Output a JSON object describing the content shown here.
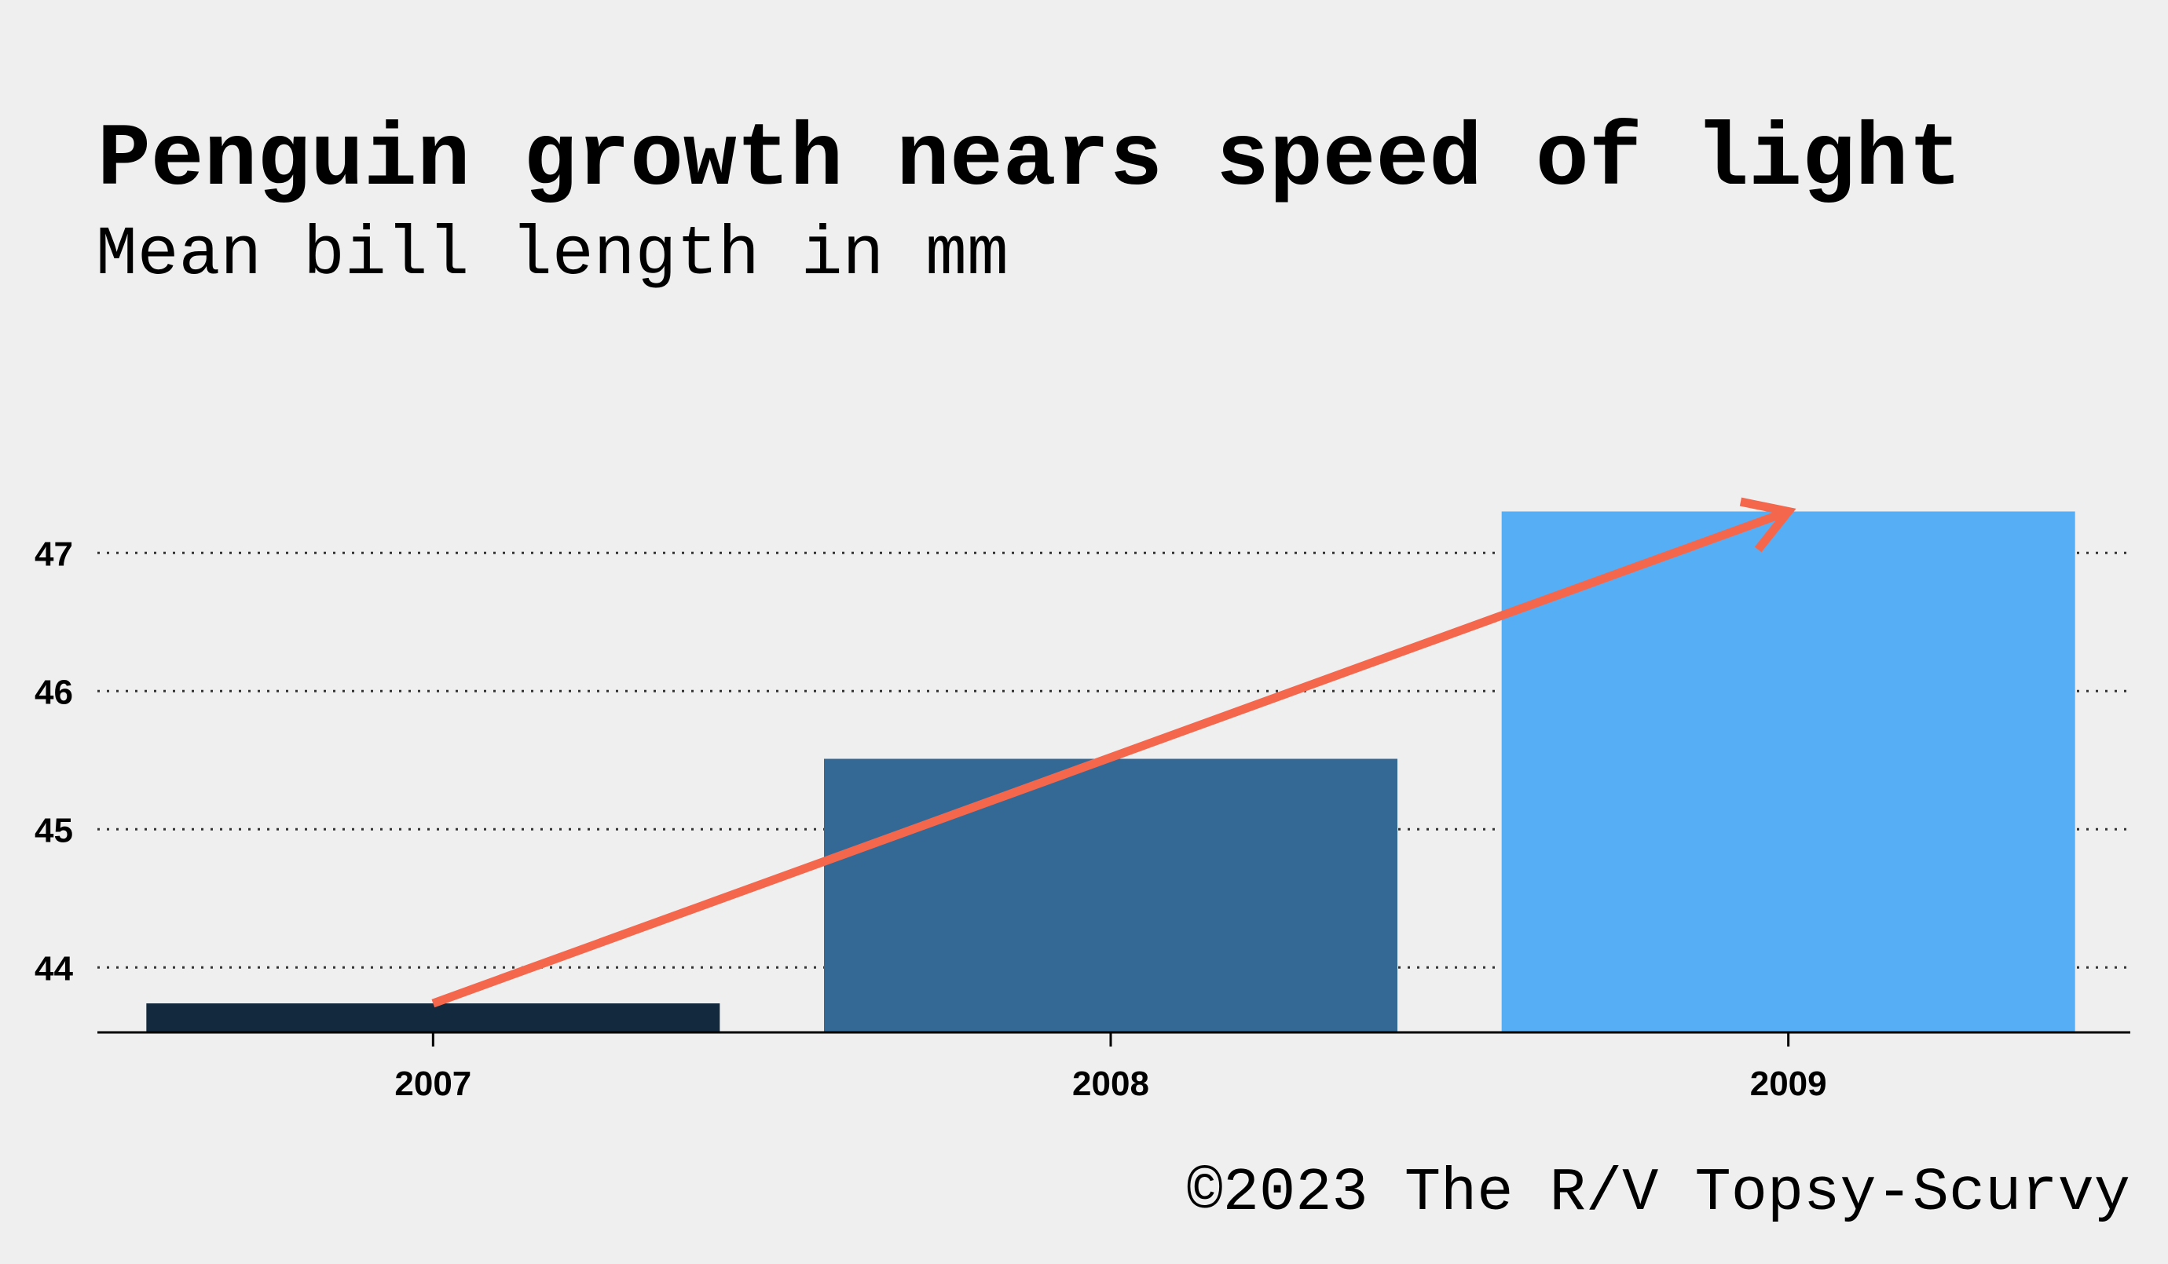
{
  "title": "Penguin growth nears speed of light",
  "subtitle": "Mean bill length in mm",
  "caption": "©2023 The R/V Topsy-Scurvy",
  "chart_data": {
    "type": "bar",
    "title": "Penguin growth nears speed of light",
    "subtitle": "Mean bill length in mm",
    "xlabel": "",
    "ylabel": "",
    "categories": [
      "2007",
      "2008",
      "2009"
    ],
    "values": [
      43.74,
      45.51,
      47.3
    ],
    "colors": [
      "#13293d",
      "#346995",
      "#56aff5"
    ],
    "ylim": [
      43.53,
      47.53
    ],
    "yticks": [
      44,
      45,
      46,
      47
    ],
    "grid": "horizontal-dotted",
    "trend_arrow": {
      "color": "#f5674d",
      "from": {
        "x": "2007",
        "y": 43.74
      },
      "to": {
        "x": "2009",
        "y": 47.3
      }
    }
  }
}
